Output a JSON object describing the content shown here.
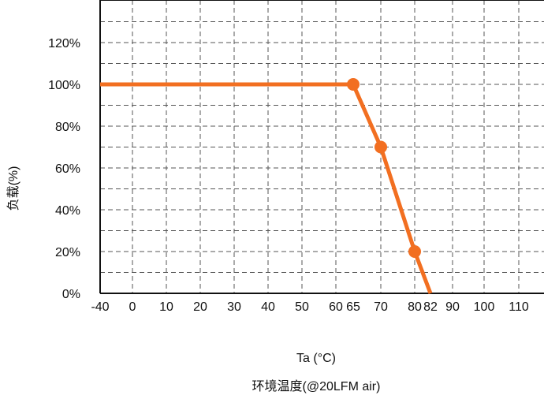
{
  "chart_data": {
    "type": "line",
    "title": "",
    "xlabel": "Ta (°C)",
    "xlabel_secondary": "环境温度(@20LFM air)",
    "ylabel": "负载(%)",
    "x_ticks": [
      "-40",
      "0",
      "10",
      "20",
      "30",
      "40",
      "50",
      "60",
      "65",
      "70",
      "80",
      "82",
      "90",
      "100",
      "110"
    ],
    "y_ticks": [
      "0%",
      "20%",
      "40%",
      "60%",
      "80%",
      "100%",
      "120%"
    ],
    "ylim": [
      0,
      140
    ],
    "grid": true,
    "legend": "none",
    "series": [
      {
        "color": "#f26f21",
        "x": [
          -40,
          65,
          70,
          80,
          82
        ],
        "y": [
          100,
          100,
          70,
          20,
          0
        ],
        "markers": [
          65,
          70,
          80
        ]
      }
    ]
  }
}
